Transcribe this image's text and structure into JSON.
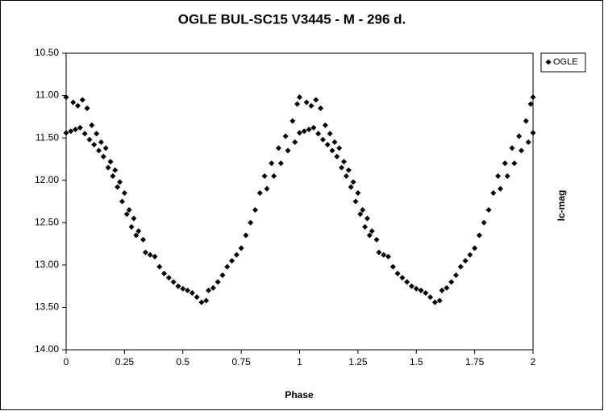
{
  "chart_data": {
    "type": "scatter",
    "title": "OGLE BUL-SC15  V3445 - M - 296 d.",
    "x_label": "Phase",
    "y_label": "Ic-mag",
    "xlim": [
      0,
      2
    ],
    "xticks": [
      0,
      0.25,
      0.5,
      0.75,
      1,
      1.25,
      1.5,
      1.75,
      2
    ],
    "ylim": [
      10.5,
      14.0
    ],
    "y_inverted": true,
    "yticks": [
      {
        "value": 10.5,
        "label": "10.50"
      },
      {
        "value": 11.0,
        "label": "11.00"
      },
      {
        "value": 11.5,
        "label": "11.50"
      },
      {
        "value": 12.0,
        "label": "12.00"
      },
      {
        "value": 12.5,
        "label": "12.50"
      },
      {
        "value": 13.0,
        "label": "13.00"
      },
      {
        "value": 13.5,
        "label": "13.50"
      },
      {
        "value": 14.0,
        "label": "14.00"
      }
    ],
    "legend": "top-right",
    "series": [
      {
        "name": "OGLE",
        "color": "#000000",
        "x": [
          0.0,
          0.0,
          0.02,
          0.03,
          0.04,
          0.05,
          0.06,
          0.07,
          0.08,
          0.09,
          0.1,
          0.11,
          0.12,
          0.13,
          0.14,
          0.15,
          0.16,
          0.17,
          0.18,
          0.19,
          0.2,
          0.21,
          0.22,
          0.23,
          0.24,
          0.25,
          0.26,
          0.27,
          0.28,
          0.29,
          0.3,
          0.31,
          0.33,
          0.34,
          0.36,
          0.38,
          0.4,
          0.42,
          0.44,
          0.46,
          0.48,
          0.5,
          0.52,
          0.54,
          0.56,
          0.58,
          0.6,
          0.61,
          0.63,
          0.65,
          0.67,
          0.69,
          0.71,
          0.73,
          0.75,
          0.77,
          0.79,
          0.81,
          0.83,
          0.85,
          0.86,
          0.88,
          0.89,
          0.91,
          0.92,
          0.94,
          0.95,
          0.97,
          0.98,
          0.99,
          1.0,
          1.0,
          1.02,
          1.03,
          1.04,
          1.05,
          1.06,
          1.07,
          1.08,
          1.09,
          1.1,
          1.11,
          1.12,
          1.13,
          1.14,
          1.15,
          1.16,
          1.17,
          1.18,
          1.19,
          1.2,
          1.21,
          1.22,
          1.23,
          1.24,
          1.25,
          1.26,
          1.27,
          1.28,
          1.29,
          1.3,
          1.31,
          1.33,
          1.34,
          1.36,
          1.38,
          1.4,
          1.42,
          1.44,
          1.46,
          1.48,
          1.5,
          1.52,
          1.54,
          1.56,
          1.58,
          1.6,
          1.61,
          1.63,
          1.65,
          1.67,
          1.69,
          1.71,
          1.73,
          1.75,
          1.77,
          1.79,
          1.81,
          1.83,
          1.85,
          1.86,
          1.88,
          1.89,
          1.91,
          1.92,
          1.94,
          1.95,
          1.97,
          1.98,
          1.99,
          2.0,
          2.0
        ],
        "values": [
          11.02,
          11.44,
          11.42,
          11.08,
          11.4,
          11.12,
          11.38,
          11.05,
          11.45,
          11.15,
          11.52,
          11.35,
          11.58,
          11.45,
          11.65,
          11.55,
          11.72,
          11.62,
          11.85,
          11.78,
          11.95,
          11.88,
          12.08,
          12.02,
          12.25,
          12.15,
          12.4,
          12.35,
          12.55,
          12.45,
          12.65,
          12.6,
          12.7,
          12.85,
          12.88,
          12.9,
          13.02,
          13.1,
          13.15,
          13.2,
          13.25,
          13.28,
          13.3,
          13.33,
          13.38,
          13.44,
          13.42,
          13.3,
          13.27,
          13.2,
          13.12,
          13.02,
          12.95,
          12.88,
          12.8,
          12.65,
          12.5,
          12.35,
          12.15,
          11.95,
          12.1,
          11.8,
          11.95,
          11.62,
          11.8,
          11.48,
          11.65,
          11.3,
          11.55,
          11.1,
          11.02,
          11.44,
          11.42,
          11.08,
          11.4,
          11.12,
          11.38,
          11.05,
          11.45,
          11.15,
          11.52,
          11.35,
          11.58,
          11.45,
          11.65,
          11.55,
          11.72,
          11.62,
          11.85,
          11.78,
          11.95,
          11.88,
          12.08,
          12.02,
          12.25,
          12.15,
          12.4,
          12.35,
          12.55,
          12.45,
          12.65,
          12.6,
          12.7,
          12.85,
          12.88,
          12.9,
          13.02,
          13.1,
          13.15,
          13.2,
          13.25,
          13.28,
          13.3,
          13.33,
          13.38,
          13.44,
          13.42,
          13.3,
          13.27,
          13.2,
          13.12,
          13.02,
          12.95,
          12.88,
          12.8,
          12.65,
          12.5,
          12.35,
          12.15,
          11.95,
          12.1,
          11.8,
          11.95,
          11.62,
          11.8,
          11.48,
          11.65,
          11.3,
          11.55,
          11.1,
          11.02,
          11.44
        ]
      }
    ]
  }
}
